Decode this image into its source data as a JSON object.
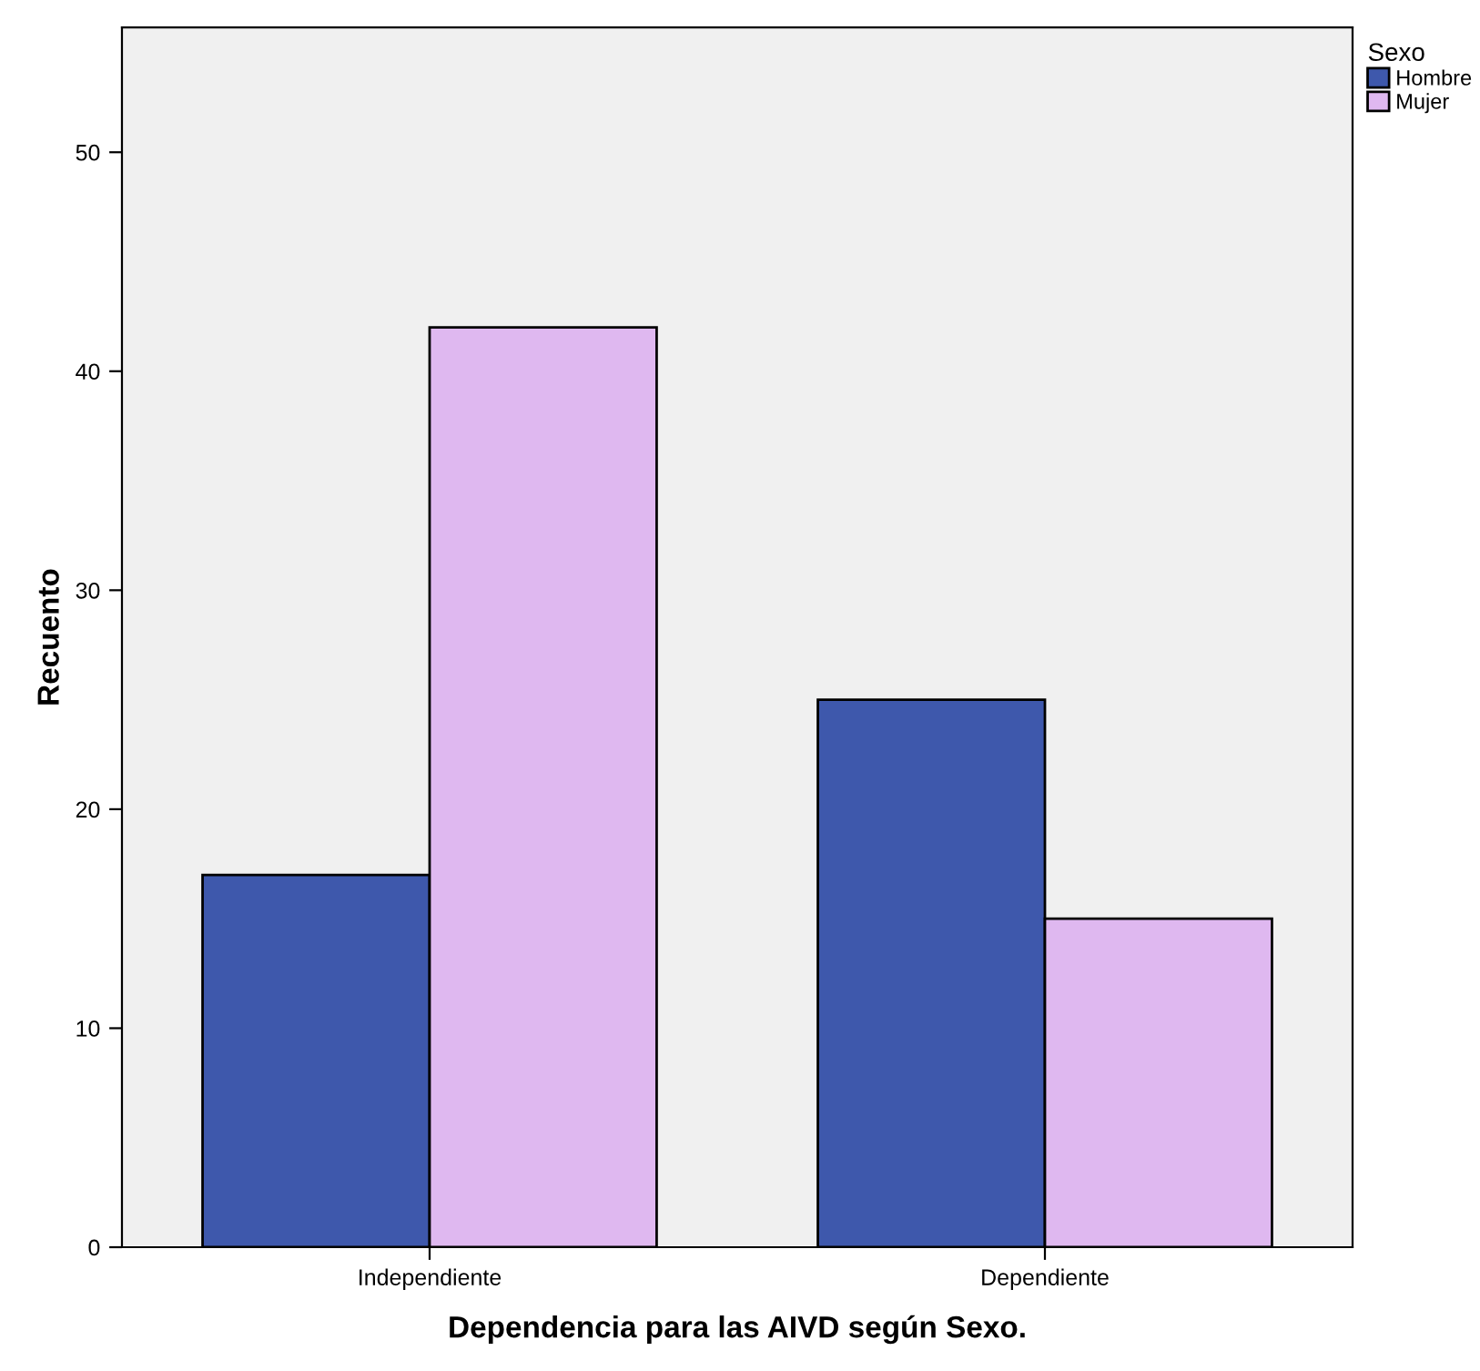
{
  "chart_data": {
    "type": "bar",
    "xlabel": "Dependencia para las AIVD según Sexo.",
    "ylabel": "Recuento",
    "legend_title": "Sexo",
    "categories": [
      "Independiente",
      "Dependiente"
    ],
    "series": [
      {
        "name": "Hombre",
        "color": "#3e58ac",
        "values": [
          17,
          25
        ]
      },
      {
        "name": "Mujer",
        "color": "#dfb8f0",
        "values": [
          42,
          15
        ]
      }
    ],
    "ylim": [
      0,
      55.7
    ],
    "yticks": [
      0,
      10,
      20,
      30,
      40,
      50
    ],
    "grid": false,
    "legend": "top right"
  }
}
